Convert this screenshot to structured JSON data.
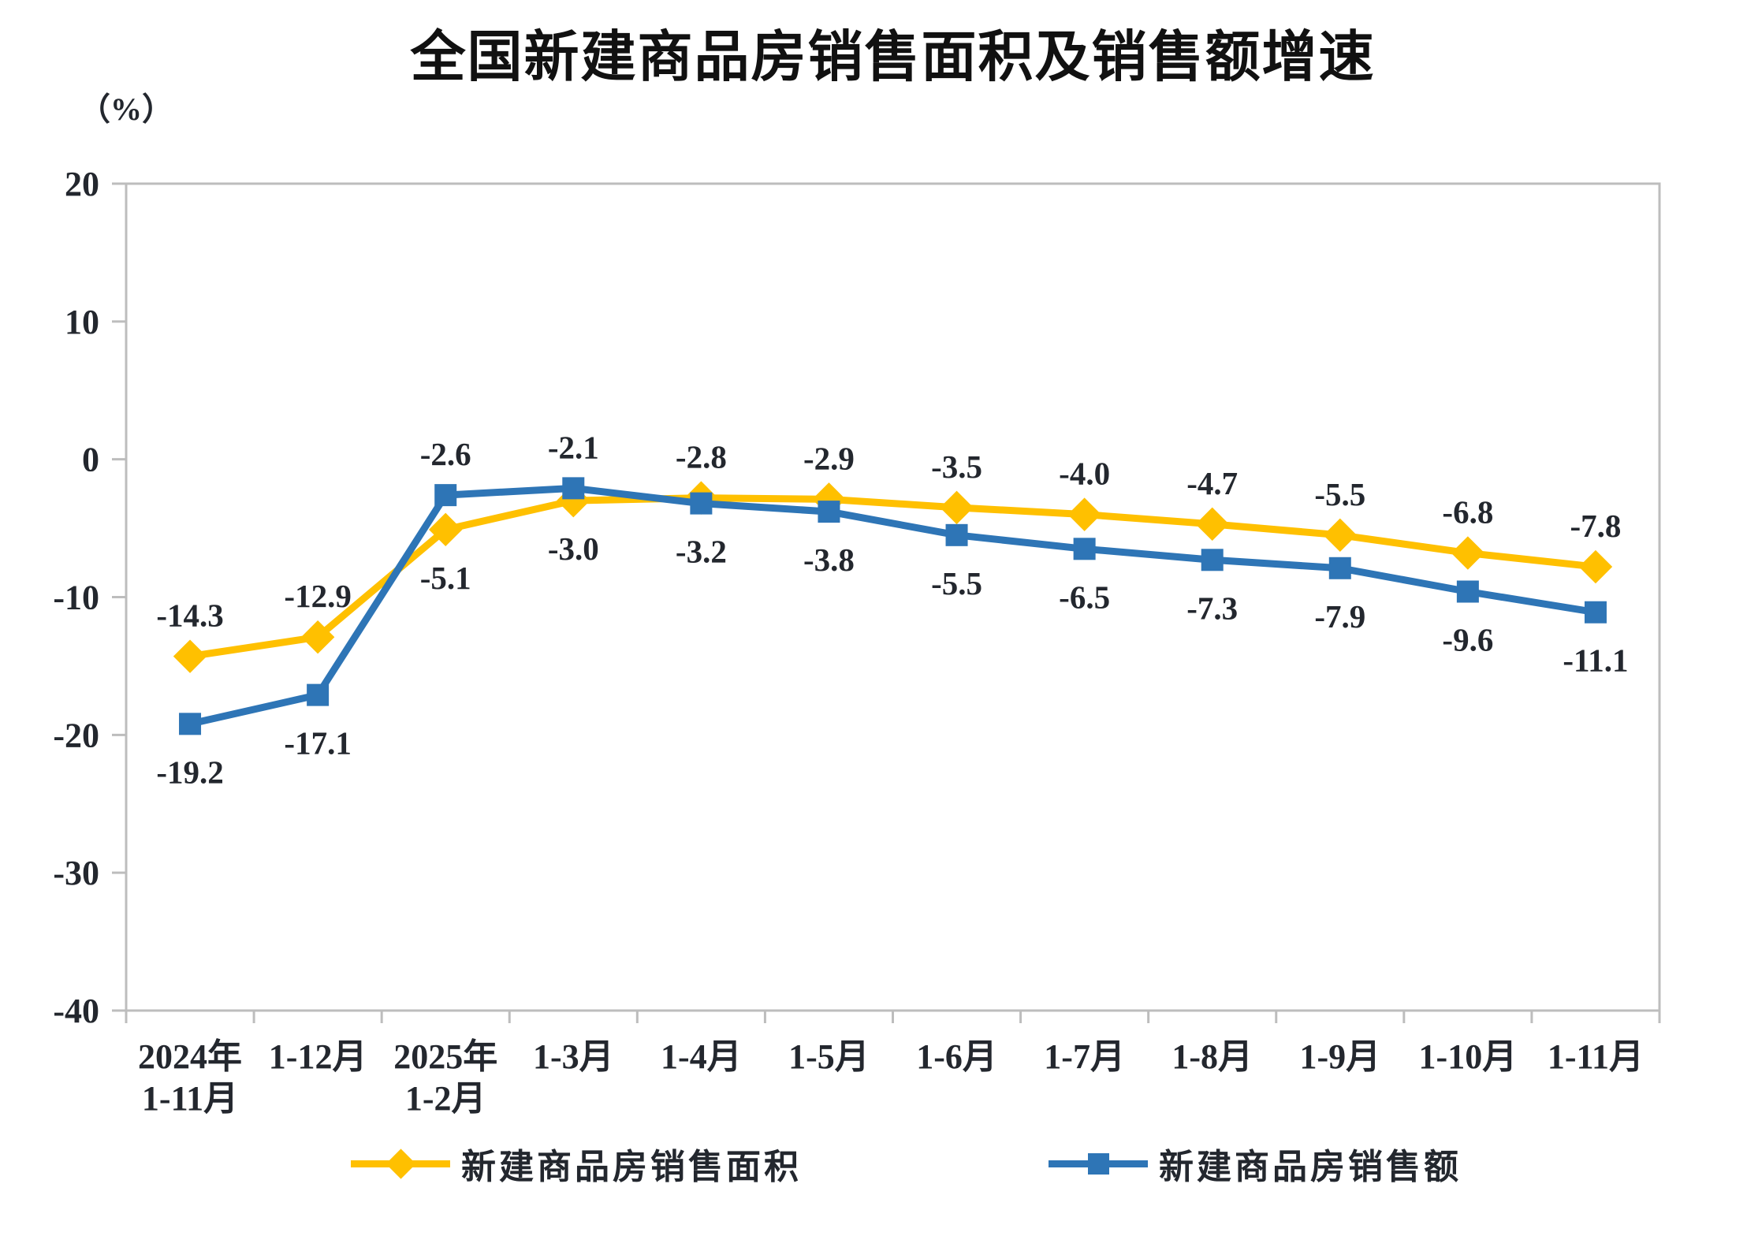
{
  "chart_data": {
    "type": "line",
    "title": "全国新建商品房销售面积及销售额增速",
    "unit_label": "（%）",
    "categories": [
      "2024年\n1-11月",
      "1-12月",
      "2025年\n1-2月",
      "1-3月",
      "1-4月",
      "1-5月",
      "1-6月",
      "1-7月",
      "1-8月",
      "1-9月",
      "1-10月",
      "1-11月"
    ],
    "series": [
      {
        "name": "新建商品房销售面积",
        "marker": "diamond",
        "color": "#FFC000",
        "values": [
          -14.3,
          -12.9,
          -5.1,
          -3.0,
          -2.8,
          -2.9,
          -3.5,
          -4.0,
          -4.7,
          -5.5,
          -6.8,
          -7.8
        ]
      },
      {
        "name": "新建商品房销售额",
        "marker": "square",
        "color": "#2E75B6",
        "values": [
          -19.2,
          -17.1,
          -2.6,
          -2.1,
          -3.2,
          -3.8,
          -5.5,
          -6.5,
          -7.3,
          -7.9,
          -9.6,
          -11.1
        ]
      }
    ],
    "y_axis": {
      "min": -40,
      "max": 20,
      "step": 10,
      "ticks": [
        20,
        10,
        0,
        -10,
        -20,
        -30,
        -40
      ]
    },
    "grid": false,
    "legend_position": "bottom",
    "colors": {
      "axis_border": "#BDBDBD",
      "text": "#23272E",
      "title": "#111111"
    }
  }
}
